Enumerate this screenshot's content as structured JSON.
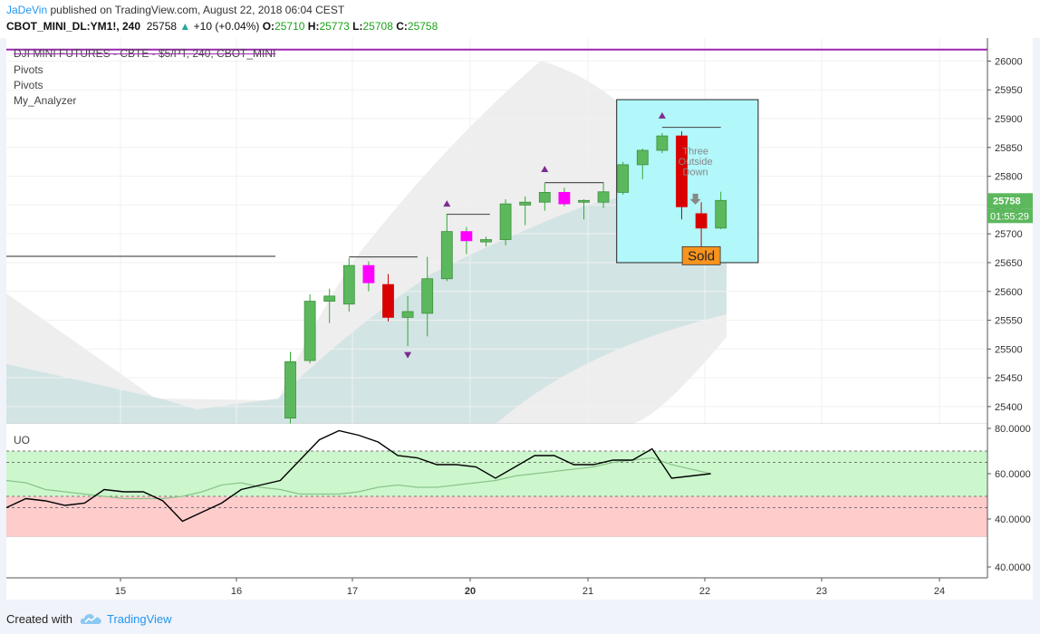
{
  "header": {
    "author": "JaDeVin",
    "published_text": "published on TradingView.com, August 22, 2018 06:04 CEST",
    "symbol": "CBOT_MINI_DL:YM1!, 240",
    "last": "25758",
    "change_arrow": "▲",
    "change": "+10 (+0.04%)",
    "o_label": "O:",
    "o": "25710",
    "h_label": "H:",
    "h": "25773",
    "l_label": "L:",
    "l": "25708",
    "c_label": "C:",
    "c": "25758"
  },
  "legend": {
    "title": "DJI MINI FUTURES - CBTE - $5/PT, 240, CBOT_MINI",
    "items": [
      "Pivots",
      "Pivots",
      "My_Analyzer"
    ]
  },
  "annotations": {
    "pattern_text": [
      "Three",
      "Outside",
      "Down"
    ],
    "signal_label": "Sold"
  },
  "price_badges": {
    "last_price": "25758",
    "countdown": "01:55:29"
  },
  "oscillator": {
    "name": "UO",
    "overbought": 70,
    "oversold": 50
  },
  "footer": {
    "created_with": "Created with",
    "brand": "TradingView"
  },
  "colors": {
    "bull": "#5cb85c",
    "bear": "#d90000",
    "inside": "#ff00ff",
    "pattern_box": "#b2f7fa",
    "resistance_line": "#9c27b0",
    "sold_badge": "#f7931e",
    "oscillator_line": "#000000"
  },
  "chart_data": [
    {
      "type": "candlestick",
      "title": "DJI MINI FUTURES - CBTE - $5/PT, 240, CBOT_MINI",
      "x_tick_labels": [
        "15",
        "16",
        "17",
        "20",
        "21",
        "22",
        "23",
        "24"
      ],
      "ylim": [
        25370,
        26040
      ],
      "y_ticks": [
        25400,
        25450,
        25500,
        25550,
        25600,
        25650,
        25700,
        25750,
        25800,
        25850,
        25900,
        25950,
        26000
      ],
      "y_tick_labels": [
        "25400",
        "25450",
        "25500",
        "25550",
        "25600",
        "25650",
        "25700",
        "25750",
        "25800",
        "25850",
        "25900",
        "25950",
        "26000"
      ],
      "candles": [
        {
          "o": 25380,
          "h": 25495,
          "l": 25370,
          "c": 25478,
          "kind": "bull"
        },
        {
          "o": 25480,
          "h": 25595,
          "l": 25475,
          "c": 25583,
          "kind": "bull"
        },
        {
          "o": 25583,
          "h": 25605,
          "l": 25545,
          "c": 25592,
          "kind": "bull"
        },
        {
          "o": 25578,
          "h": 25658,
          "l": 25565,
          "c": 25645,
          "kind": "bull"
        },
        {
          "o": 25645,
          "h": 25652,
          "l": 25600,
          "c": 25615,
          "kind": "inside"
        },
        {
          "o": 25612,
          "h": 25630,
          "l": 25548,
          "c": 25555,
          "kind": "bear"
        },
        {
          "o": 25555,
          "h": 25592,
          "l": 25505,
          "c": 25565,
          "kind": "bull"
        },
        {
          "o": 25562,
          "h": 25660,
          "l": 25522,
          "c": 25622,
          "kind": "bull"
        },
        {
          "o": 25622,
          "h": 25735,
          "l": 25618,
          "c": 25704,
          "kind": "bull"
        },
        {
          "o": 25704,
          "h": 25712,
          "l": 25665,
          "c": 25688,
          "kind": "inside"
        },
        {
          "o": 25686,
          "h": 25695,
          "l": 25678,
          "c": 25690,
          "kind": "bull"
        },
        {
          "o": 25690,
          "h": 25760,
          "l": 25680,
          "c": 25752,
          "kind": "bull"
        },
        {
          "o": 25750,
          "h": 25765,
          "l": 25715,
          "c": 25755,
          "kind": "bull"
        },
        {
          "o": 25755,
          "h": 25788,
          "l": 25740,
          "c": 25772,
          "kind": "bull"
        },
        {
          "o": 25772,
          "h": 25780,
          "l": 25748,
          "c": 25752,
          "kind": "inside"
        },
        {
          "o": 25755,
          "h": 25760,
          "l": 25725,
          "c": 25758,
          "kind": "bull"
        },
        {
          "o": 25755,
          "h": 25790,
          "l": 25745,
          "c": 25773,
          "kind": "bull"
        },
        {
          "o": 25772,
          "h": 25825,
          "l": 25768,
          "c": 25820,
          "kind": "bull"
        },
        {
          "o": 25820,
          "h": 25848,
          "l": 25795,
          "c": 25845,
          "kind": "bull"
        },
        {
          "o": 25845,
          "h": 25875,
          "l": 25840,
          "c": 25870,
          "kind": "bull"
        },
        {
          "o": 25870,
          "h": 25878,
          "l": 25725,
          "c": 25747,
          "kind": "bear"
        },
        {
          "o": 25735,
          "h": 25755,
          "l": 25678,
          "c": 25710,
          "kind": "bear"
        },
        {
          "o": 25710,
          "h": 25773,
          "l": 25708,
          "c": 25758,
          "kind": "bull"
        }
      ],
      "pivot_lines": [
        {
          "y": 25661,
          "from_bar": -11,
          "to_bar": -7
        },
        {
          "y": 25660,
          "from_bar": 3,
          "to_bar": 6.5
        },
        {
          "y": 25734,
          "from_bar": 8,
          "to_bar": 10.2
        },
        {
          "y": 25789,
          "from_bar": 13,
          "to_bar": 16
        },
        {
          "y": 25885,
          "from_bar": 19,
          "to_bar": 22
        }
      ],
      "pivot_markers": [
        {
          "bar": 6,
          "y": 25490,
          "dir": "down"
        },
        {
          "bar": 8,
          "y": 25752,
          "dir": "up"
        },
        {
          "bar": 13,
          "y": 25812,
          "dir": "up"
        },
        {
          "bar": 19,
          "y": 25905,
          "dir": "up"
        }
      ],
      "resistance_level": 26020
    },
    {
      "type": "line",
      "title": "UO",
      "ylim": [
        32,
        82
      ],
      "y_ticks": [
        40,
        60,
        80
      ],
      "y_tick_labels": [
        "40.0000",
        "60.0000",
        "80.0000"
      ],
      "bands": [
        {
          "from": 50,
          "to": 70,
          "color": "#ccf7cc"
        },
        {
          "from": 30,
          "to": 50,
          "color": "#ffcccc"
        }
      ],
      "levels": [
        70,
        65,
        50,
        45,
        30
      ],
      "series": [
        {
          "color": "#000000",
          "values": [
            45,
            49,
            48,
            46,
            47,
            53,
            52,
            52,
            48,
            39,
            43,
            47,
            53,
            55,
            57,
            66,
            75,
            79,
            77,
            74,
            68,
            67,
            64,
            64,
            63,
            58,
            63,
            68,
            68,
            64,
            64,
            66,
            66,
            71,
            58,
            59,
            60
          ]
        },
        {
          "color": "#8bc48b",
          "values": [
            57,
            56,
            53,
            52,
            51,
            50,
            49,
            49,
            49,
            50,
            52,
            55,
            56,
            54,
            53,
            51,
            51,
            51,
            52,
            54,
            55,
            54,
            54,
            55,
            56,
            57,
            59,
            60,
            61,
            62,
            63,
            65,
            66,
            67,
            64,
            62,
            60
          ]
        }
      ]
    },
    {
      "type": "line",
      "y_ticks": [
        40
      ],
      "y_tick_labels": [
        "40.0000"
      ]
    }
  ]
}
